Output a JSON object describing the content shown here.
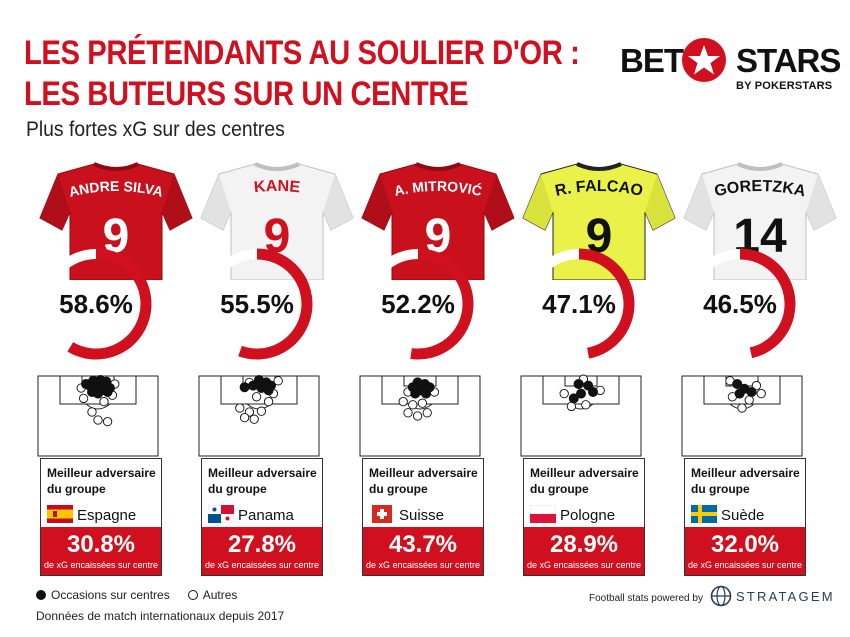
{
  "header": {
    "title_line1": "LES PRÉTENDANTS AU SOULIER D'OR :",
    "title_line2": "LES BUTEURS SUR UN CENTRE",
    "subtitle": "Plus fortes xG sur des centres"
  },
  "brand": {
    "bet": "BET",
    "stars": "STARS",
    "by": "BY POKERSTARS",
    "accent_color": "#d0101e"
  },
  "opponent_box": {
    "title": "Meilleur adversaire du groupe",
    "caption": "de xG encaissées sur centre"
  },
  "legend": {
    "filled": "Occasions sur centres",
    "empty": "Autres"
  },
  "footer": {
    "source": "Données de match internationaux depuis 2017",
    "powered_by": "Football stats powered by",
    "stratagem": "STRATAGEM"
  },
  "chart_data": {
    "type": "radial-bar",
    "title": "LES PRÉTENDANTS AU SOULIER D'OR : LES BUTEURS SUR UN CENTRE",
    "subtitle": "Plus fortes xG sur des centres",
    "unit": "%",
    "series": [
      {
        "player": "ANDRE SILVA",
        "number": "9",
        "kit": "red",
        "value": 58.6,
        "value_label": "58.6%",
        "opponent": "Espagne",
        "flag": "spain",
        "opponent_value": 30.8,
        "opponent_label": "30.8%",
        "shots_filled": [
          [
            0.46,
            0.06
          ],
          [
            0.52,
            0.05
          ],
          [
            0.57,
            0.07
          ],
          [
            0.5,
            0.1
          ],
          [
            0.43,
            0.12
          ],
          [
            0.55,
            0.12
          ],
          [
            0.48,
            0.16
          ],
          [
            0.6,
            0.15
          ],
          [
            0.4,
            0.1
          ],
          [
            0.53,
            0.18
          ],
          [
            0.45,
            0.2
          ],
          [
            0.58,
            0.2
          ],
          [
            0.5,
            0.22
          ]
        ],
        "shots_empty": [
          [
            0.36,
            0.15
          ],
          [
            0.64,
            0.1
          ],
          [
            0.62,
            0.24
          ],
          [
            0.38,
            0.28
          ],
          [
            0.55,
            0.32
          ],
          [
            0.45,
            0.45
          ],
          [
            0.5,
            0.55
          ],
          [
            0.58,
            0.57
          ]
        ]
      },
      {
        "player": "KANE",
        "number": "9",
        "kit": "white",
        "value": 55.5,
        "value_label": "55.5%",
        "opponent": "Panama",
        "flag": "panama",
        "opponent_value": 27.8,
        "opponent_label": "27.8%",
        "shots_filled": [
          [
            0.5,
            0.05
          ],
          [
            0.56,
            0.08
          ],
          [
            0.45,
            0.12
          ],
          [
            0.6,
            0.12
          ],
          [
            0.52,
            0.15
          ],
          [
            0.38,
            0.14
          ],
          [
            0.58,
            0.18
          ]
        ],
        "shots_empty": [
          [
            0.42,
            0.08
          ],
          [
            0.66,
            0.06
          ],
          [
            0.62,
            0.22
          ],
          [
            0.48,
            0.26
          ],
          [
            0.58,
            0.32
          ],
          [
            0.34,
            0.4
          ],
          [
            0.42,
            0.45
          ],
          [
            0.52,
            0.44
          ],
          [
            0.38,
            0.52
          ],
          [
            0.46,
            0.54
          ]
        ]
      },
      {
        "player": "A. MITROVIĆ",
        "number": "9",
        "kit": "red",
        "value": 52.2,
        "value_label": "52.2%",
        "opponent": "Suisse",
        "flag": "switzerland",
        "opponent_value": 43.7,
        "opponent_label": "43.7%",
        "shots_filled": [
          [
            0.48,
            0.08
          ],
          [
            0.54,
            0.1
          ],
          [
            0.44,
            0.14
          ],
          [
            0.58,
            0.14
          ],
          [
            0.5,
            0.18
          ],
          [
            0.55,
            0.22
          ],
          [
            0.46,
            0.22
          ]
        ],
        "shots_empty": [
          [
            0.4,
            0.2
          ],
          [
            0.62,
            0.2
          ],
          [
            0.36,
            0.32
          ],
          [
            0.44,
            0.36
          ],
          [
            0.52,
            0.34
          ],
          [
            0.4,
            0.46
          ],
          [
            0.48,
            0.5
          ],
          [
            0.56,
            0.46
          ]
        ]
      },
      {
        "player": "R. FALCAO",
        "number": "9",
        "kit": "yellow",
        "value": 47.1,
        "value_label": "47.1%",
        "opponent": "Pologne",
        "flag": "poland",
        "opponent_value": 28.9,
        "opponent_label": "28.9%",
        "shots_filled": [
          [
            0.48,
            0.1
          ],
          [
            0.56,
            0.12
          ],
          [
            0.6,
            0.2
          ],
          [
            0.5,
            0.22
          ],
          [
            0.44,
            0.28
          ]
        ],
        "shots_empty": [
          [
            0.52,
            0.04
          ],
          [
            0.66,
            0.18
          ],
          [
            0.36,
            0.22
          ],
          [
            0.42,
            0.38
          ],
          [
            0.54,
            0.36
          ]
        ]
      },
      {
        "player": "GORETZKA",
        "number": "14",
        "kit": "white",
        "value": 46.5,
        "value_label": "46.5%",
        "opponent": "Suède",
        "flag": "sweden",
        "opponent_value": 32.0,
        "opponent_label": "32.0%",
        "shots_filled": [
          [
            0.46,
            0.1
          ],
          [
            0.52,
            0.16
          ],
          [
            0.58,
            0.2
          ],
          [
            0.48,
            0.22
          ]
        ],
        "shots_empty": [
          [
            0.4,
            0.06
          ],
          [
            0.62,
            0.12
          ],
          [
            0.66,
            0.22
          ],
          [
            0.42,
            0.26
          ],
          [
            0.56,
            0.3
          ],
          [
            0.5,
            0.4
          ]
        ]
      }
    ]
  }
}
